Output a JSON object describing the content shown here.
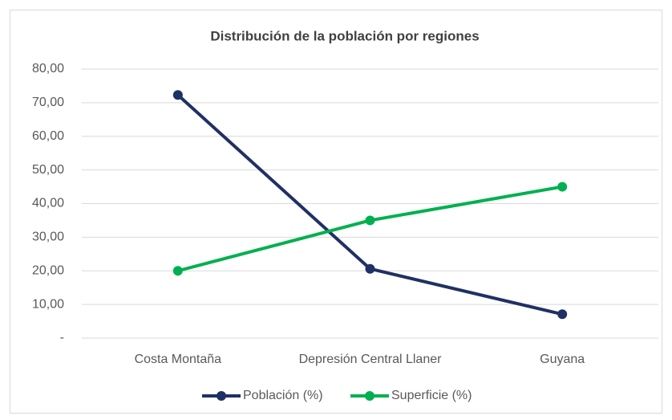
{
  "chart_data": {
    "type": "line",
    "title": "Distribución  de la población por regiones",
    "categories": [
      "Costa Montaña",
      "Depresión Central Llaner",
      "Guyana"
    ],
    "series": [
      {
        "name": "Población (%)",
        "color": "#1f3064",
        "values": [
          72.3,
          20.6,
          7.1
        ]
      },
      {
        "name": "Superficie (%)",
        "color": "#00b050",
        "values": [
          20,
          35,
          45
        ]
      }
    ],
    "ylim": [
      0,
      80
    ],
    "yticks": [
      {
        "value": 0,
        "label": "-"
      },
      {
        "value": 10,
        "label": "10,00"
      },
      {
        "value": 20,
        "label": "20,00"
      },
      {
        "value": 30,
        "label": "30,00"
      },
      {
        "value": 40,
        "label": "40,00"
      },
      {
        "value": 50,
        "label": "50,00"
      },
      {
        "value": 60,
        "label": "60,00"
      },
      {
        "value": 70,
        "label": "70,00"
      },
      {
        "value": 80,
        "label": "80,00"
      }
    ],
    "grid": true,
    "legend": "bottom"
  }
}
